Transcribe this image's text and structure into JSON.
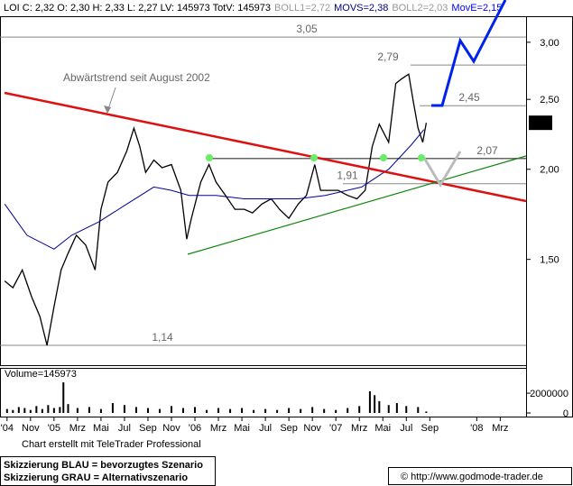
{
  "chart_data": {
    "type": "line",
    "log_scale": true,
    "header": [
      {
        "text": "LOI C: 2,32 O: 2,30 H: 2,33 L: 2,27 LV: 145973 TotV: 145973",
        "color": "#000000"
      },
      {
        "text": "BOLL1=2,72",
        "color": "#999999"
      },
      {
        "text": "MOVS=2,38",
        "color": "#000080"
      },
      {
        "text": "BOLL2=2,03",
        "color": "#999999"
      },
      {
        "text": "MovE=2,15",
        "color": "#0000ff"
      }
    ],
    "annotation": "Abwärtstrend seit August 2002",
    "xlim": [
      -2.6,
      42.2
    ],
    "xticks": [
      {
        "value": -2,
        "label": "'04"
      },
      {
        "value": 0,
        "label": "Nov"
      },
      {
        "value": 2,
        "label": "'05"
      },
      {
        "value": 4,
        "label": "Mrz"
      },
      {
        "value": 6,
        "label": "Mai"
      },
      {
        "value": 8,
        "label": "Jul"
      },
      {
        "value": 10,
        "label": "Sep"
      },
      {
        "value": 12,
        "label": "Nov"
      },
      {
        "value": 14,
        "label": "'06"
      },
      {
        "value": 16,
        "label": "Mrz"
      },
      {
        "value": 18,
        "label": "Mai"
      },
      {
        "value": 20,
        "label": "Jul"
      },
      {
        "value": 22,
        "label": "Sep"
      },
      {
        "value": 24,
        "label": "Nov"
      },
      {
        "value": 26,
        "label": "'07"
      },
      {
        "value": 28,
        "label": "Mrz"
      },
      {
        "value": 30,
        "label": "Mai"
      },
      {
        "value": 32,
        "label": "Jul"
      },
      {
        "value": 34,
        "label": "Sep"
      },
      {
        "value": 38,
        "label": "'08"
      },
      {
        "value": 40,
        "label": "Mrz"
      }
    ],
    "ylim": [
      1.07,
      3.26
    ],
    "yticks": [
      {
        "value": 1.5,
        "label": "1,50"
      },
      {
        "value": 2,
        "label": "2,00"
      },
      {
        "value": 2.5,
        "label": "2,50"
      },
      {
        "value": 3,
        "label": "3,00"
      }
    ],
    "levels": [
      {
        "value": 3.05,
        "label": "3,05"
      },
      {
        "value": 2.79,
        "label": "2,79"
      },
      {
        "value": 2.45,
        "label": "2,45"
      },
      {
        "value": 2.07,
        "label": "2,07"
      },
      {
        "value": 1.91,
        "label": "1,91"
      },
      {
        "value": 1.14,
        "label": "1,14"
      }
    ],
    "last": {
      "value": 2.32,
      "label": "2,32"
    },
    "series": [
      {
        "color": "#000000",
        "x": [
          -2.2,
          -1.5,
          -0.7,
          0.1,
          0.8,
          1.4,
          2.0,
          2.6,
          3.2,
          3.9,
          4.7,
          5.5,
          6.0,
          6.6,
          7.4,
          8.2,
          8.8,
          9.3,
          9.8,
          10.5,
          11.2,
          12.0,
          12.8,
          13.3,
          13.7,
          14.5,
          15.2,
          15.8,
          16.6,
          17.4,
          18.2,
          18.9,
          19.7,
          20.5,
          21.2,
          22.0,
          22.8,
          23.5,
          24.2,
          24.7,
          25.5,
          26.2,
          27.0,
          27.8,
          28.5,
          29.1,
          29.7,
          30.5,
          31.1,
          31.6,
          32.2,
          32.6,
          33.0,
          33.4,
          33.7
        ],
        "values": [
          1.4,
          1.37,
          1.45,
          1.33,
          1.25,
          1.14,
          1.29,
          1.45,
          1.53,
          1.62,
          1.57,
          1.45,
          1.76,
          1.92,
          1.98,
          2.12,
          2.28,
          2.15,
          1.98,
          2.06,
          2.01,
          2.03,
          1.87,
          1.6,
          1.71,
          1.92,
          2.03,
          1.92,
          1.84,
          1.76,
          1.76,
          1.74,
          1.79,
          1.82,
          1.76,
          1.71,
          1.79,
          1.84,
          2.03,
          1.87,
          1.87,
          1.87,
          1.84,
          1.82,
          1.87,
          2.15,
          2.31,
          2.18,
          2.63,
          2.67,
          2.71,
          2.48,
          2.28,
          2.18,
          2.32
        ]
      },
      {
        "color": "#000099",
        "x": [
          -2.2,
          -0.3,
          2.0,
          3.5,
          5.8,
          8.2,
          10.5,
          12.0,
          13.5,
          15.8,
          18.2,
          20.5,
          22.8,
          25.1,
          28.2,
          30.5,
          32.4,
          33.5
        ],
        "values": [
          1.79,
          1.62,
          1.55,
          1.62,
          1.69,
          1.79,
          1.89,
          1.87,
          1.84,
          1.84,
          1.82,
          1.82,
          1.82,
          1.84,
          1.89,
          2.0,
          2.16,
          2.27
        ]
      }
    ],
    "volume": {
      "title": "Volume=145973",
      "ylim": [
        0,
        4200000
      ],
      "yticks": [
        2000000,
        0
      ],
      "x": [
        -2,
        -1.5,
        -1,
        -0.5,
        0,
        0.5,
        1,
        1.5,
        2,
        2.5,
        2.8,
        3.2,
        4,
        5,
        6,
        7,
        8,
        9,
        10,
        11,
        12,
        13,
        14,
        15,
        16,
        17,
        18,
        19,
        20,
        21,
        22,
        23,
        24,
        25,
        26,
        27,
        28,
        28.9,
        29.3,
        29.7,
        30.5,
        31.2,
        32,
        33,
        33.7
      ],
      "values": [
        400000,
        300000,
        600000,
        500000,
        300000,
        700000,
        400000,
        800000,
        500000,
        600000,
        3100000,
        900000,
        500000,
        600000,
        400000,
        1000000,
        800000,
        600000,
        500000,
        400000,
        700000,
        500000,
        600000,
        300000,
        500000,
        400000,
        500000,
        300000,
        400000,
        300000,
        500000,
        400000,
        600000,
        400000,
        300000,
        500000,
        700000,
        2200000,
        1800000,
        1200000,
        800000,
        1000000,
        700000,
        600000,
        145973
      ]
    },
    "footer": {
      "credit": "Chart erstellt mit TeleTrader Professional",
      "legend_blue": "Skizzierung BLAU = bevorzugtes Szenario",
      "legend_grey": "Skizzierung GRAU = Alternativszenario",
      "source": "© http://www.godmode-trader.de"
    }
  }
}
